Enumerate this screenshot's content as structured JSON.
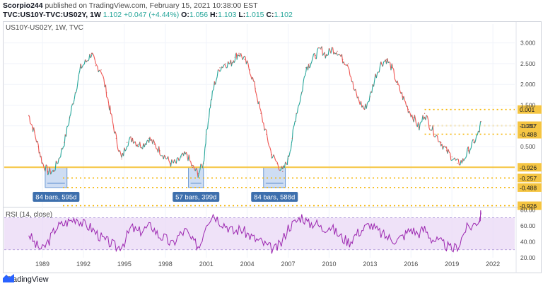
{
  "header": {
    "author": "Scorpio244",
    "published": "published on TradingView.com, February 15, 2021 10:38:00 EST",
    "symbol_line": "TVC:US10Y-TVC:US02Y, 1W",
    "last": "1.102",
    "change": "+0.047 (+4.44%)",
    "o_label": "O:",
    "o_value": "1.056",
    "h_label": "H:",
    "h_value": "1.103",
    "l_label": "L:",
    "l_value": "1.015",
    "c_label": "C:",
    "c_value": "1.102"
  },
  "main_legend": "US10Y-US02Y, 1W, TVC",
  "rsi_legend": "RSI (14, close)",
  "footer": {
    "brand": "TradingView"
  },
  "colors": {
    "candle_up": "#26a69a",
    "candle_down": "#ef5350",
    "price": "#c0504d",
    "zero_line": "#f5c542",
    "level_dots": "#f5b400",
    "box_fill": "#c9daf2",
    "box_border": "#3d79c7",
    "label_bg": "#3d6fad",
    "rsi_line": "#9c27b0",
    "rsi_band": "#ead8f5"
  },
  "chart_data": [
    {
      "type": "line",
      "title": "US10Y-US02Y, 1W, TVC",
      "x_tick_labels": [
        "1989",
        "1992",
        "1995",
        "1998",
        "2001",
        "2004",
        "2007",
        "2010",
        "2013",
        "2016",
        "2019",
        "2022"
      ],
      "x_ticks": [
        1989,
        1992,
        1995,
        1998,
        2001,
        2004,
        2007,
        2010,
        2013,
        2016,
        2019,
        2022
      ],
      "y_tick_labels": [
        "3.000",
        "2.500",
        "2.000",
        "1.500",
        "1.000",
        "0.500",
        "0.001",
        "-0.257",
        "-0.488",
        "-0.926"
      ],
      "ylim": [
        -0.95,
        3.25
      ],
      "series": [
        {
          "x": [
            1988.0,
            1988.3,
            1988.7,
            1989.0,
            1989.4,
            1989.8,
            1990.2,
            1990.6,
            1991.0,
            1991.4,
            1991.8,
            1992.2,
            1992.6,
            1992.9,
            1993.3,
            1993.7,
            1994.0,
            1994.4,
            1994.8,
            1995.2,
            1995.6,
            1996.0,
            1996.4,
            1996.8,
            1997.2,
            1997.6,
            1998.0,
            1998.4,
            1998.8,
            1999.2,
            1999.6,
            2000.0,
            2000.4,
            2000.8,
            2001.0,
            2001.3,
            2001.6,
            2002.0,
            2002.4,
            2002.8,
            2003.1,
            2003.4,
            2003.8,
            2004.2,
            2004.6,
            2005.0,
            2005.4,
            2005.8,
            2006.2,
            2006.6,
            2007.0,
            2007.3,
            2007.6,
            2008.0,
            2008.3,
            2008.6,
            2009.0,
            2009.4,
            2009.8,
            2010.2,
            2010.6,
            2011.0,
            2011.4,
            2011.8,
            2012.2,
            2012.6,
            2013.0,
            2013.4,
            2013.8,
            2014.2,
            2014.6,
            2015.0,
            2015.4,
            2015.8,
            2016.2,
            2016.6,
            2017.0,
            2017.4,
            2017.8,
            2018.2,
            2018.6,
            2019.0,
            2019.4,
            2019.8,
            2020.2,
            2020.6,
            2021.0,
            2021.13
          ],
          "y": [
            1.25,
            0.95,
            0.5,
            0.1,
            -0.1,
            -0.1,
            0.2,
            0.6,
            1.2,
            1.8,
            2.4,
            2.55,
            2.75,
            2.45,
            2.35,
            1.8,
            1.3,
            0.7,
            0.2,
            0.6,
            0.7,
            0.55,
            0.55,
            0.7,
            0.55,
            0.4,
            0.25,
            0.1,
            0.1,
            0.25,
            0.3,
            0.0,
            -0.15,
            0.1,
            0.8,
            1.5,
            2.0,
            2.4,
            2.5,
            2.5,
            2.65,
            2.75,
            2.6,
            2.35,
            1.9,
            1.3,
            0.8,
            0.3,
            0.1,
            -0.1,
            0.2,
            0.7,
            1.3,
            1.8,
            2.4,
            2.5,
            2.7,
            2.85,
            2.7,
            2.85,
            2.8,
            2.6,
            2.5,
            1.9,
            1.6,
            1.4,
            1.7,
            2.2,
            2.5,
            2.6,
            2.4,
            2.0,
            1.7,
            1.4,
            1.2,
            0.95,
            1.3,
            1.0,
            0.8,
            0.6,
            0.4,
            0.25,
            0.1,
            0.15,
            0.4,
            0.6,
            0.85,
            1.1
          ]
        }
      ],
      "levels": [
        1.394,
        1.004,
        0.799,
        0.001,
        -0.257,
        -0.488,
        -0.926
      ],
      "zero_line": 0.001,
      "ranges": [
        {
          "x0": 1989.2,
          "x1": 1990.8,
          "y0": 0.001,
          "y1": -0.488,
          "label": "84 bars, 595d"
        },
        {
          "x0": 1999.7,
          "x1": 2000.8,
          "y0": 0.001,
          "y1": -0.488,
          "label": "57 bars, 399d"
        },
        {
          "x0": 2005.2,
          "x1": 2006.8,
          "y0": 0.001,
          "y1": -0.488,
          "label": "84 bars, 588d"
        }
      ],
      "grid": true
    },
    {
      "type": "line",
      "title": "RSI (14, close)",
      "x_ticks": [
        1989,
        1992,
        1995,
        1998,
        2001,
        2004,
        2007,
        2010,
        2013,
        2016,
        2019,
        2022
      ],
      "y_tick_labels": [
        "80.00",
        "60.00",
        "40.00",
        "20.00"
      ],
      "ylim": [
        20,
        82
      ],
      "band": [
        30,
        70
      ],
      "series": [
        {
          "x": [
            1988.0,
            1988.5,
            1989.0,
            1989.5,
            1990.0,
            1990.5,
            1991.0,
            1991.5,
            1992.0,
            1992.5,
            1993.0,
            1993.5,
            1994.0,
            1994.5,
            1995.0,
            1995.5,
            1996.0,
            1996.5,
            1997.0,
            1997.5,
            1998.0,
            1998.5,
            1999.0,
            1999.5,
            2000.0,
            2000.5,
            2001.0,
            2001.5,
            2002.0,
            2002.5,
            2003.0,
            2003.5,
            2004.0,
            2004.5,
            2005.0,
            2005.5,
            2006.0,
            2006.5,
            2007.0,
            2007.5,
            2008.0,
            2008.5,
            2009.0,
            2009.5,
            2010.0,
            2010.5,
            2011.0,
            2011.5,
            2012.0,
            2012.5,
            2013.0,
            2013.5,
            2014.0,
            2014.5,
            2015.0,
            2015.5,
            2016.0,
            2016.5,
            2017.0,
            2017.5,
            2018.0,
            2018.5,
            2019.0,
            2019.5,
            2020.0,
            2020.5,
            2021.0,
            2021.13
          ],
          "y": [
            50,
            36,
            30,
            42,
            58,
            62,
            66,
            70,
            62,
            58,
            50,
            42,
            38,
            32,
            40,
            58,
            52,
            56,
            60,
            48,
            44,
            36,
            48,
            54,
            40,
            34,
            64,
            75,
            66,
            60,
            52,
            56,
            50,
            44,
            40,
            34,
            30,
            38,
            58,
            64,
            72,
            62,
            64,
            56,
            60,
            52,
            44,
            40,
            50,
            56,
            62,
            54,
            48,
            44,
            42,
            48,
            56,
            50,
            56,
            44,
            40,
            36,
            30,
            36,
            56,
            60,
            68,
            74
          ]
        }
      ]
    }
  ]
}
